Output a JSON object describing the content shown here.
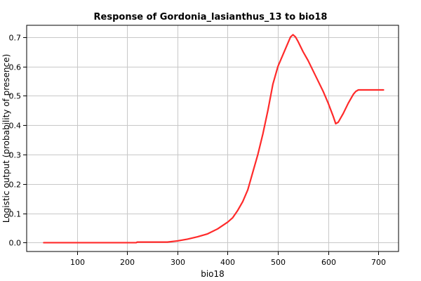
{
  "chart_data": {
    "type": "line",
    "title": "Response of Gordonia_lasianthus_13 to bio18",
    "xlabel": "bio18",
    "ylabel": "Logistic output (probability of presence)",
    "xlim": [
      0,
      740
    ],
    "ylim": [
      -0.03,
      0.74
    ],
    "x_ticks": [
      100,
      200,
      300,
      400,
      500,
      600,
      700
    ],
    "y_ticks": [
      0.0,
      0.1,
      0.2,
      0.3,
      0.4,
      0.5,
      0.6,
      0.7
    ],
    "x_tick_labels": [
      "100",
      "200",
      "300",
      "400",
      "500",
      "600",
      "700"
    ],
    "y_tick_labels": [
      "0.0",
      "0.1",
      "0.2",
      "0.3",
      "0.4",
      "0.5",
      "0.6",
      "0.7"
    ],
    "grid": true,
    "series": [
      {
        "color": "#ff2a2a",
        "x": [
          34,
          100,
          200,
          218,
          220,
          250,
          280,
          300,
          320,
          340,
          360,
          380,
          400,
          410,
          420,
          430,
          440,
          450,
          460,
          470,
          480,
          490,
          500,
          510,
          520,
          525,
          530,
          535,
          540,
          550,
          560,
          570,
          580,
          590,
          600,
          610,
          615,
          620,
          630,
          640,
          650,
          655,
          660,
          680,
          700,
          710
        ],
        "y": [
          0.0,
          0.0,
          0.0,
          0.0,
          0.002,
          0.002,
          0.002,
          0.006,
          0.012,
          0.02,
          0.03,
          0.047,
          0.07,
          0.085,
          0.11,
          0.14,
          0.18,
          0.24,
          0.3,
          0.37,
          0.45,
          0.54,
          0.6,
          0.64,
          0.68,
          0.7,
          0.708,
          0.7,
          0.685,
          0.65,
          0.62,
          0.585,
          0.55,
          0.515,
          0.475,
          0.43,
          0.405,
          0.41,
          0.44,
          0.475,
          0.505,
          0.515,
          0.52,
          0.52,
          0.52,
          0.52
        ]
      }
    ]
  }
}
